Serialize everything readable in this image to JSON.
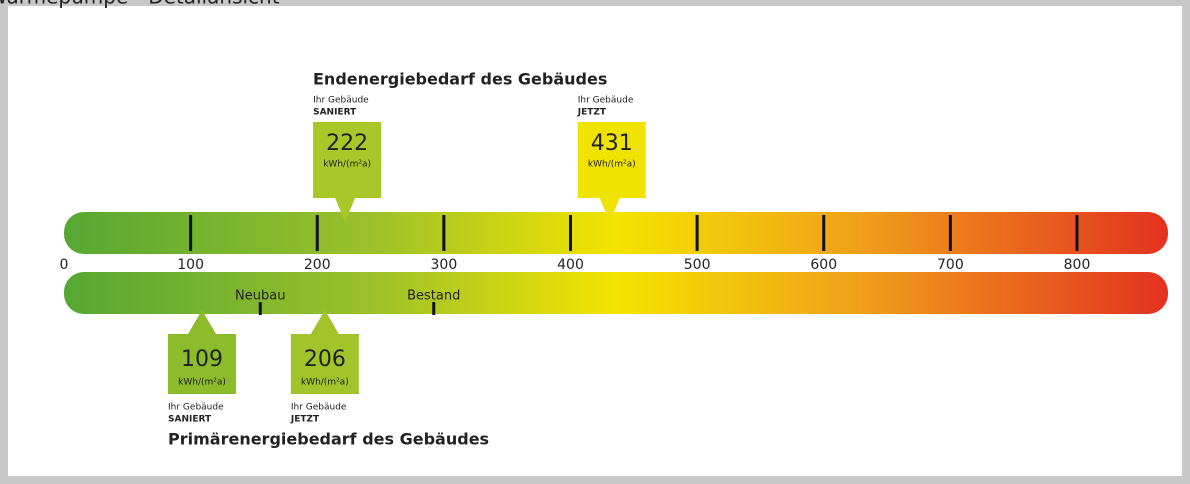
{
  "header": {
    "title": "Wärmepumpe - Detailansicht"
  },
  "scale": {
    "xlim": [
      0,
      800
    ],
    "ticks": [
      0,
      100,
      200,
      300,
      400,
      500,
      600,
      700,
      800
    ],
    "references": [
      {
        "label": "Neubau",
        "value": 155
      },
      {
        "label": "Bestand",
        "value": 292
      }
    ]
  },
  "final_energy": {
    "title": "Endenergiebedarf des Gebäudes",
    "markers": [
      {
        "caption": "Ihr Gebäude",
        "state": "SANIERT",
        "value": 222,
        "unit": "kWh/(m²a)",
        "color": "#a9c729"
      },
      {
        "caption": "Ihr Gebäude",
        "state": "JETZT",
        "value": 431,
        "unit": "kWh/(m²a)",
        "color": "#f1e300"
      }
    ]
  },
  "primary_energy": {
    "title": "Primärenergiebedarf des Gebäudes",
    "markers": [
      {
        "caption": "Ihr Gebäude",
        "state": "SANIERT",
        "value": 109,
        "unit": "kWh/(m²a)",
        "color": "#8cbb2b"
      },
      {
        "caption": "Ihr Gebäude",
        "state": "JETZT",
        "value": 206,
        "unit": "kWh/(m²a)",
        "color": "#a2c42a"
      }
    ]
  }
}
